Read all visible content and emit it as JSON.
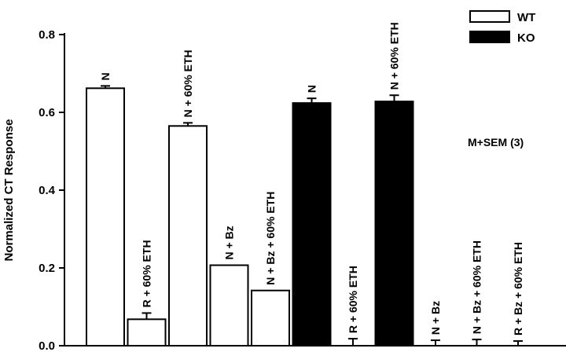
{
  "chart_data": {
    "type": "bar",
    "ylabel": "Normalized CT Response",
    "xlabel": "",
    "title": "",
    "ylim": [
      0.0,
      0.8
    ],
    "yticks": [
      "0.0",
      "0.2",
      "0.4",
      "0.6",
      "0.8"
    ],
    "note": "M+SEM (3)",
    "legend_position": "top-right",
    "legend": [
      {
        "name": "WT",
        "color": "#ffffff"
      },
      {
        "name": "KO",
        "color": "#000000"
      }
    ],
    "categories": [
      "N",
      "R + 60% ETH",
      "N + 60% ETH",
      "N + Bz",
      "N + Bz + 60% ETH",
      "N",
      "R + 60% ETH",
      "N + 60% ETH",
      "N + Bz",
      "N + Bz + 60% ETH",
      "R + Bz + 60% ETH"
    ],
    "series": [
      {
        "name": "WT",
        "values": [
          0.662,
          0.068,
          0.565,
          0.207,
          0.142,
          null,
          null,
          null,
          null,
          null,
          null
        ],
        "errors": [
          0.006,
          0.016,
          0.008,
          0.0,
          0.0,
          null,
          null,
          null,
          null,
          null,
          null
        ]
      },
      {
        "name": "KO",
        "values": [
          null,
          null,
          null,
          null,
          null,
          0.624,
          0.0,
          0.628,
          0.0,
          0.0,
          0.0
        ],
        "errors": [
          null,
          null,
          null,
          null,
          null,
          0.012,
          0.018,
          0.016,
          0.014,
          0.016,
          0.012
        ]
      }
    ]
  }
}
